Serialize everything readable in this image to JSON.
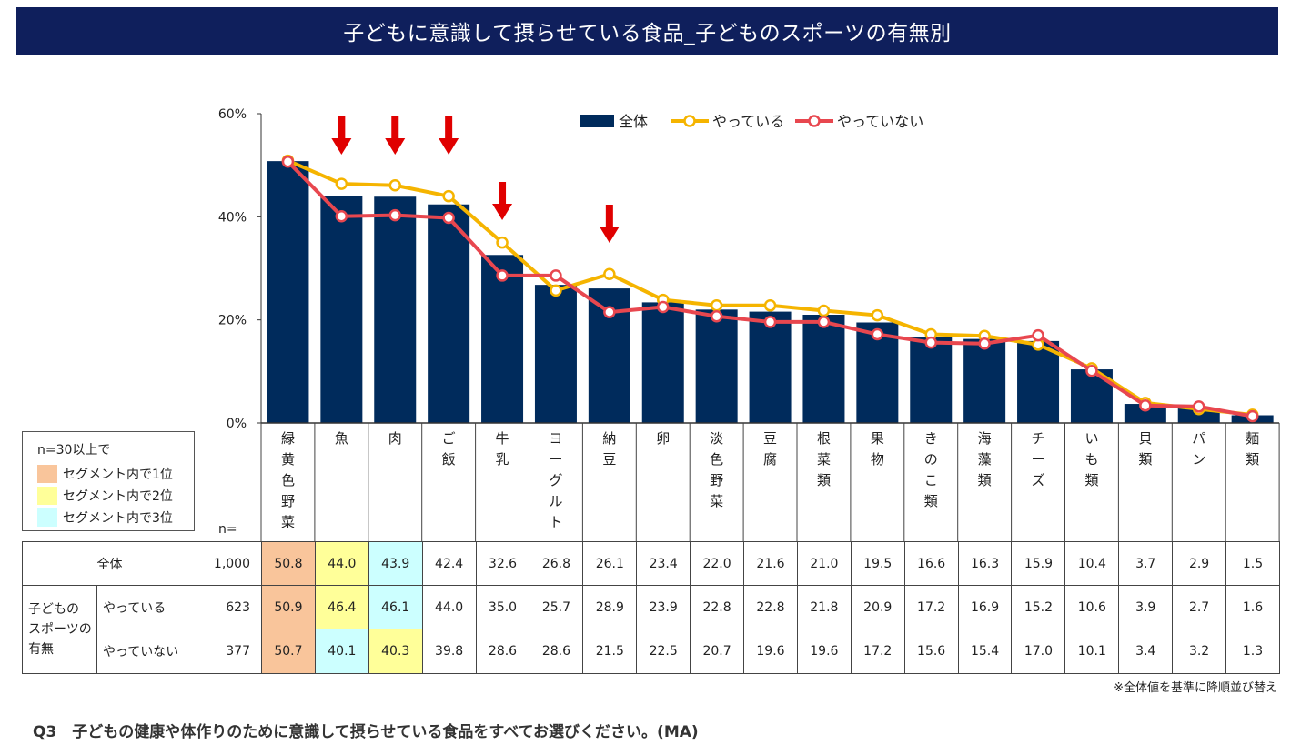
{
  "title": "子どもに意識して摂らせている食品_子どものスポーツの有無別",
  "chart_data": {
    "type": "bar",
    "categories": [
      "緑黄色野菜",
      "魚",
      "肉",
      "ご飯",
      "牛乳",
      "ヨーグルト",
      "納豆",
      "卵",
      "淡色野菜",
      "豆腐",
      "根菜類",
      "果物",
      "きのこ類",
      "海藻類",
      "チーズ",
      "いも類",
      "貝類",
      "パン",
      "麺類"
    ],
    "series": [
      {
        "name": "全体",
        "kind": "bar",
        "color": "#002b5c",
        "values": [
          50.8,
          44.0,
          43.9,
          42.4,
          32.6,
          26.8,
          26.1,
          23.4,
          22.0,
          21.6,
          21.0,
          19.5,
          16.6,
          16.3,
          15.9,
          10.4,
          3.7,
          2.9,
          1.5
        ]
      },
      {
        "name": "やっている",
        "kind": "line",
        "color": "#f5b400",
        "values": [
          50.9,
          46.4,
          46.1,
          44.0,
          35.0,
          25.7,
          28.9,
          23.9,
          22.8,
          22.8,
          21.8,
          20.9,
          17.2,
          16.9,
          15.2,
          10.6,
          3.9,
          2.7,
          1.6
        ]
      },
      {
        "name": "やっていない",
        "kind": "line",
        "color": "#e8474f",
        "values": [
          50.7,
          40.1,
          40.3,
          39.8,
          28.6,
          28.6,
          21.5,
          22.5,
          20.7,
          19.6,
          19.6,
          17.2,
          15.6,
          15.4,
          17.0,
          10.1,
          3.4,
          3.2,
          1.3
        ]
      }
    ],
    "ylim": [
      0,
      60
    ],
    "yticks": [
      "0%",
      "20%",
      "40%",
      "60%"
    ],
    "legend": "top-right",
    "arrows_over": [
      "魚",
      "肉",
      "ご飯",
      "牛乳",
      "納豆"
    ]
  },
  "legend_note": {
    "title": "n=30以上で",
    "items": [
      {
        "label": "セグメント内で1位",
        "color": "#f9c59b"
      },
      {
        "label": "セグメント内で2位",
        "color": "#ffff99"
      },
      {
        "label": "セグメント内で3位",
        "color": "#ccffff"
      }
    ]
  },
  "table": {
    "n_label": "n=",
    "row_all": {
      "label": "全体",
      "n": "1,000",
      "values": [
        "50.8",
        "44.0",
        "43.9",
        "42.4",
        "32.6",
        "26.8",
        "26.1",
        "23.4",
        "22.0",
        "21.6",
        "21.0",
        "19.5",
        "16.6",
        "16.3",
        "15.9",
        "10.4",
        "3.7",
        "2.9",
        "1.5"
      ]
    },
    "group_label": "子どもの\nスポーツの\n有無",
    "row_yes": {
      "label": "やっている",
      "n": "623",
      "values": [
        "50.9",
        "46.4",
        "46.1",
        "44.0",
        "35.0",
        "25.7",
        "28.9",
        "23.9",
        "22.8",
        "22.8",
        "21.8",
        "20.9",
        "17.2",
        "16.9",
        "15.2",
        "10.6",
        "3.9",
        "2.7",
        "1.6"
      ]
    },
    "row_no": {
      "label": "やっていない",
      "n": "377",
      "values": [
        "50.7",
        "40.1",
        "40.3",
        "39.8",
        "28.6",
        "28.6",
        "21.5",
        "22.5",
        "20.7",
        "19.6",
        "19.6",
        "17.2",
        "15.6",
        "15.4",
        "17.0",
        "10.1",
        "3.4",
        "3.2",
        "1.3"
      ]
    },
    "highlights": {
      "row_all": {
        "0": 1,
        "1": 2,
        "2": 3
      },
      "row_yes": {
        "0": 1,
        "1": 2,
        "2": 3
      },
      "row_no": {
        "0": 1,
        "1": 3,
        "2": 2
      }
    }
  },
  "footnote": "※全体値を基準に降順並び替え",
  "question": "Q3　子どもの健康や体作りのために意識して摂らせている食品をすべてお選びください。(MA)"
}
